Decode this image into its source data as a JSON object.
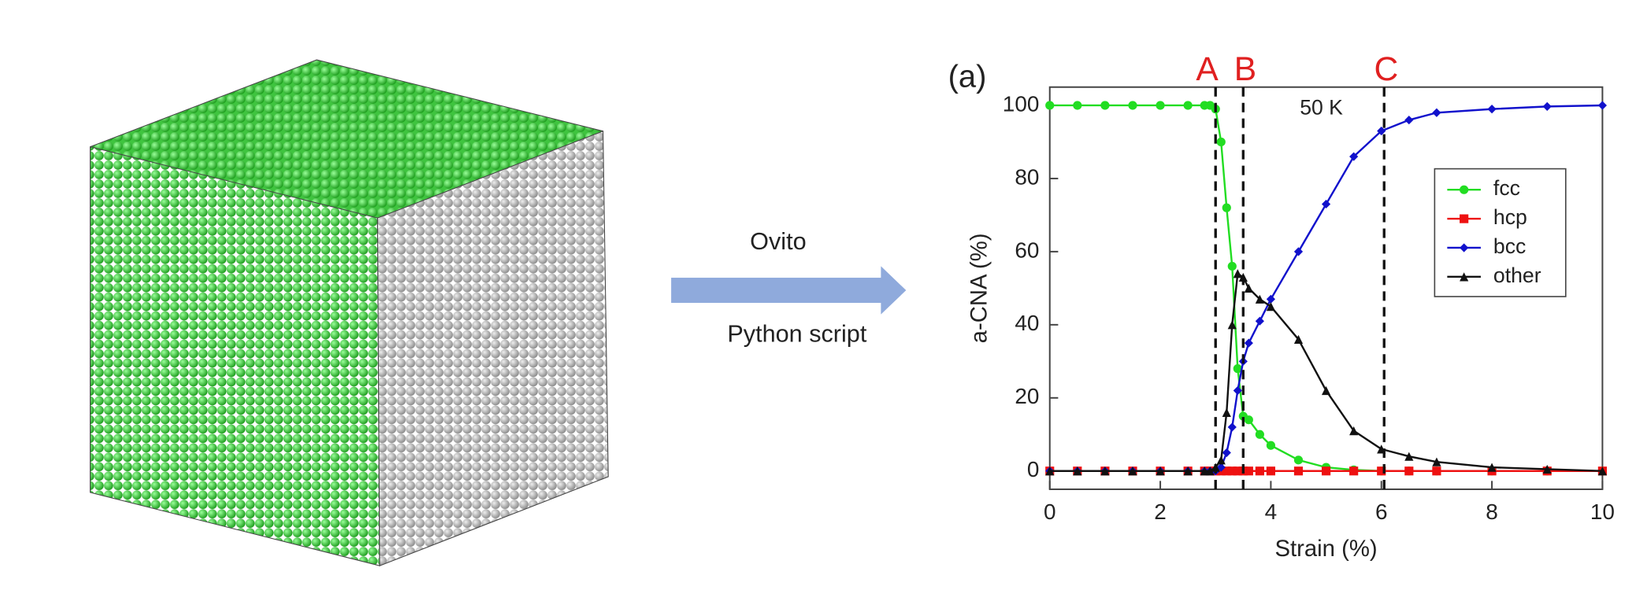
{
  "diagram": {
    "arrow_top_label": "Ovito",
    "arrow_bottom_label": "Python script"
  },
  "chart_data": {
    "type": "line",
    "panel_label": "(a)",
    "annotation": "50 K",
    "xlabel": "Strain (%)",
    "ylabel": "a-CNA (%)",
    "xlim": [
      0,
      10
    ],
    "ylim": [
      -5,
      105
    ],
    "xticks": [
      0,
      2,
      4,
      6,
      8,
      10
    ],
    "yticks": [
      0,
      20,
      40,
      60,
      80,
      100
    ],
    "legend": "upper right",
    "vlines": [
      {
        "label": "A",
        "x": 3.0
      },
      {
        "label": "B",
        "x": 3.5
      },
      {
        "label": "C",
        "x": 6.05
      }
    ],
    "x": [
      0,
      0.5,
      1,
      1.5,
      2,
      2.5,
      2.8,
      2.9,
      3.0,
      3.1,
      3.2,
      3.3,
      3.4,
      3.5,
      3.6,
      3.8,
      4.0,
      4.5,
      5,
      5.5,
      6,
      6.5,
      7,
      8,
      9,
      10
    ],
    "series": [
      {
        "name": "fcc",
        "color": "#22dd22",
        "marker": "circle",
        "values": [
          100,
          100,
          100,
          100,
          100,
          100,
          100,
          100,
          99,
          90,
          72,
          56,
          28,
          15,
          14,
          10,
          7,
          3,
          1,
          0.3,
          0,
          0,
          0,
          0,
          0,
          0
        ]
      },
      {
        "name": "hcp",
        "color": "#ee1111",
        "marker": "square",
        "values": [
          0,
          0,
          0,
          0,
          0,
          0,
          0,
          0,
          0,
          0,
          0,
          0,
          0,
          0,
          0,
          0,
          0,
          0,
          0,
          0,
          0,
          0,
          0,
          0,
          0,
          0
        ]
      },
      {
        "name": "bcc",
        "color": "#1111cc",
        "marker": "diamond",
        "values": [
          0,
          0,
          0,
          0,
          0,
          0,
          0,
          0,
          0,
          1,
          5,
          12,
          22,
          30,
          35,
          41,
          47,
          60,
          73,
          86,
          93,
          96,
          98,
          99,
          99.7,
          100
        ]
      },
      {
        "name": "other",
        "color": "#111111",
        "marker": "triangle",
        "values": [
          0,
          0,
          0,
          0,
          0,
          0,
          0,
          0,
          1,
          3,
          16,
          40,
          54,
          53,
          50,
          47,
          45,
          36,
          22,
          11,
          6,
          4,
          2.5,
          1,
          0.5,
          0
        ]
      }
    ]
  }
}
